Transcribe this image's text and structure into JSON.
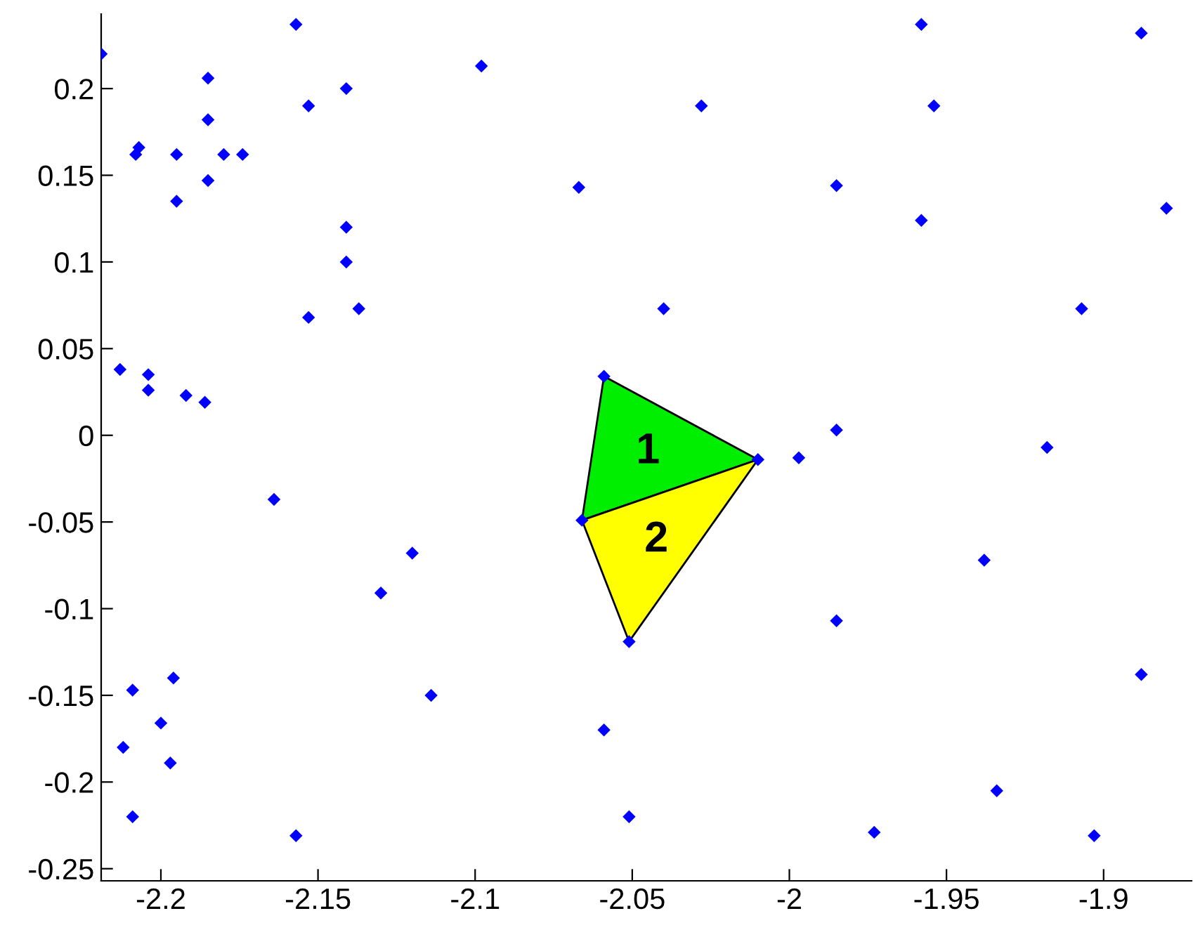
{
  "chart_data": {
    "type": "scatter",
    "grid": false,
    "xlim": [
      -2.219,
      -1.872
    ],
    "ylim": [
      -0.257,
      0.243
    ],
    "xticks": [
      -2.2,
      -2.15,
      -2.1,
      -2.05,
      -2,
      -1.95,
      -1.9
    ],
    "yticks": [
      -0.25,
      -0.2,
      -0.15,
      -0.1,
      -0.05,
      0,
      0.05,
      0.1,
      0.15,
      0.2
    ],
    "series": [
      {
        "type": "area",
        "name": "1",
        "color": "#00ee00",
        "x": [
          -2.059,
          -2.01,
          -2.066
        ],
        "values": [
          0.034,
          -0.014,
          -0.049
        ]
      },
      {
        "type": "area",
        "name": "2",
        "color": "#ffff00",
        "x": [
          -2.066,
          -2.01,
          -2.051
        ],
        "values": [
          -0.049,
          -0.014,
          -0.119
        ]
      },
      {
        "marker": "diamond",
        "color": "#0000ff",
        "x": [
          -2.219,
          -2.157,
          -2.185,
          -2.153,
          -2.141,
          -2.185,
          -2.207,
          -2.208,
          -2.195,
          -2.18,
          -2.174,
          -2.185,
          -2.195,
          -2.141,
          -2.141,
          -2.153,
          -2.137,
          -2.213,
          -2.204,
          -2.204,
          -2.192,
          -2.186,
          -2.098,
          -2.028,
          -2.067,
          -2.04,
          -2.059,
          -2.01,
          -2.066,
          -2.051,
          -2.114,
          -2.059,
          -2.051,
          -2.164,
          -2.12,
          -2.13,
          -2.196,
          -2.209,
          -2.2,
          -2.212,
          -2.197,
          -2.209,
          -2.157,
          -1.958,
          -1.888,
          -1.954,
          -1.985,
          -1.88,
          -1.958,
          -1.907,
          -1.985,
          -1.997,
          -1.918,
          -1.938,
          -1.985,
          -1.888,
          -1.934,
          -1.973,
          -1.903
        ],
        "values": [
          0.22,
          0.237,
          0.206,
          0.19,
          0.2,
          0.182,
          0.166,
          0.162,
          0.162,
          0.162,
          0.162,
          0.147,
          0.135,
          0.12,
          0.1,
          0.068,
          0.073,
          0.038,
          0.035,
          0.026,
          0.023,
          0.019,
          0.213,
          0.19,
          0.143,
          0.073,
          0.034,
          -0.014,
          -0.049,
          -0.119,
          -0.15,
          -0.17,
          -0.22,
          -0.037,
          -0.068,
          -0.091,
          -0.14,
          -0.147,
          -0.166,
          -0.18,
          -0.189,
          -0.22,
          -0.231,
          0.237,
          0.232,
          0.19,
          0.144,
          0.131,
          0.124,
          0.073,
          0.003,
          -0.013,
          -0.007,
          -0.072,
          -0.107,
          -0.138,
          -0.205,
          -0.229,
          -0.231
        ]
      }
    ]
  }
}
